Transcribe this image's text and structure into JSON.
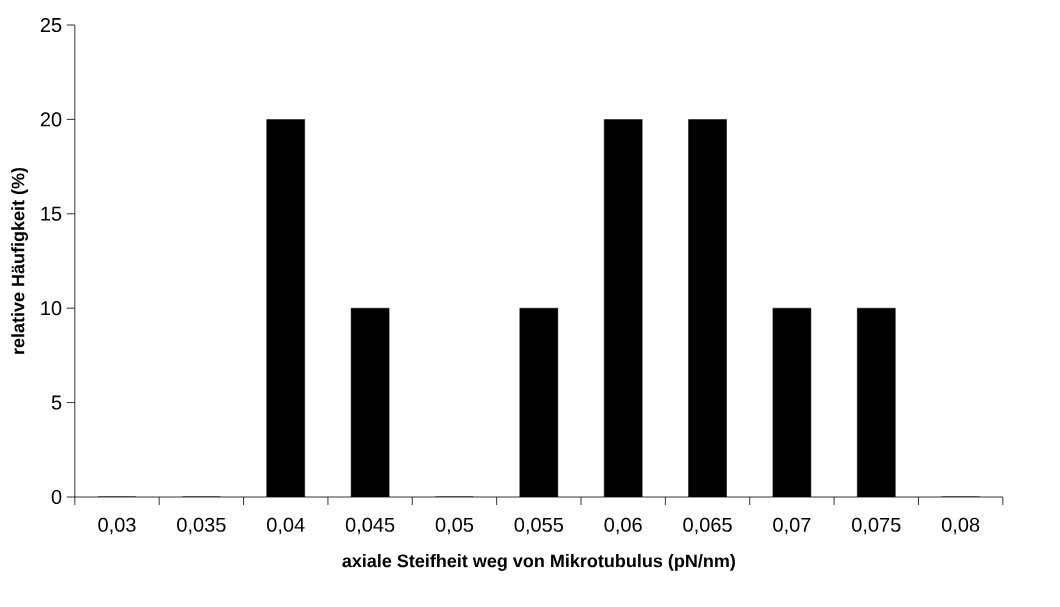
{
  "chart_data": {
    "type": "bar",
    "xlabel": "axiale Steifheit weg von Mikrotubulus (pN/nm)",
    "ylabel": "relative Häufigkeit (%)",
    "categories": [
      "0,03",
      "0,035",
      "0,04",
      "0,045",
      "0,05",
      "0,055",
      "0,06",
      "0,065",
      "0,07",
      "0,075",
      "0,08"
    ],
    "values": [
      0,
      0,
      20,
      10,
      0,
      10,
      20,
      20,
      10,
      10,
      0
    ],
    "color": "#000000",
    "ylim": [
      0,
      25
    ],
    "yticks": [
      0,
      5,
      10,
      15,
      20,
      25
    ]
  }
}
